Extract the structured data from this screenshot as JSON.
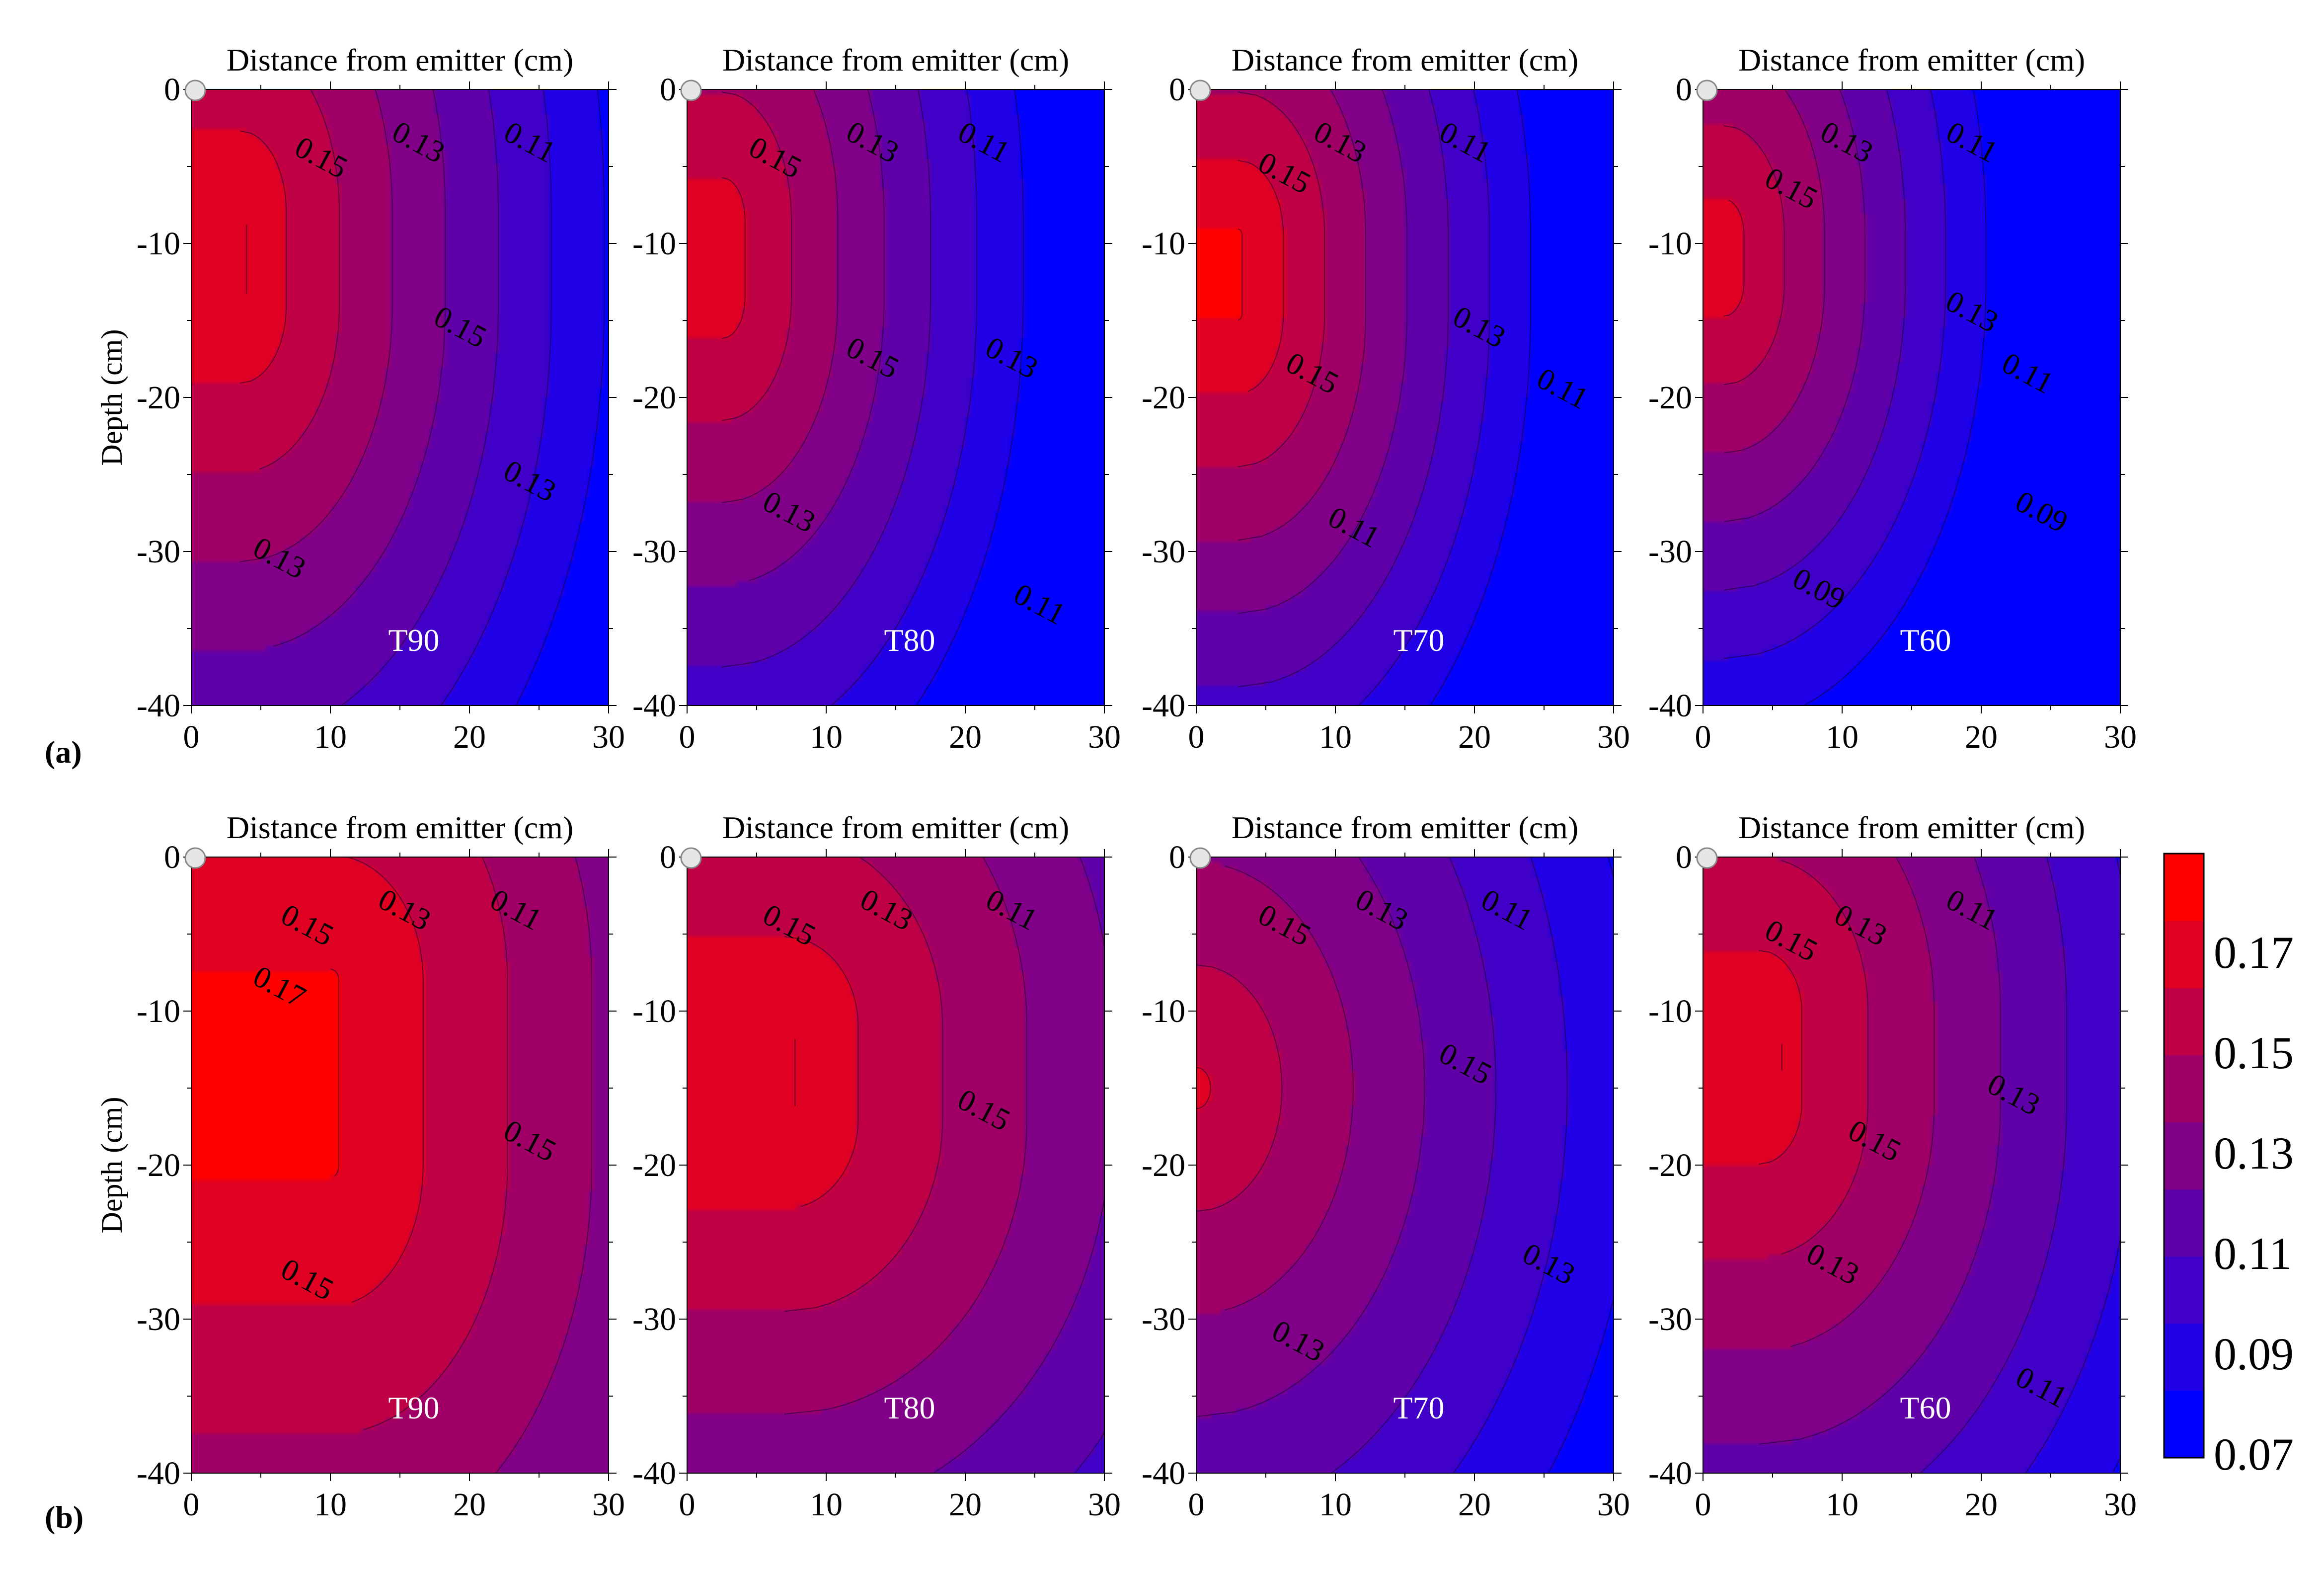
{
  "figure": {
    "row_labels": [
      "(a)",
      "(b)"
    ],
    "colorbar": {
      "labels": [
        "0.17",
        "0.15",
        "0.13",
        "0.11",
        "0.09",
        "0.07"
      ],
      "range": [
        0.07,
        0.19
      ],
      "colors": [
        "#0000ff",
        "#2000e6",
        "#4000c8",
        "#6000a8",
        "#800088",
        "#a00066",
        "#c00044",
        "#e00022",
        "#ff0000"
      ]
    }
  },
  "chart_data": [
    {
      "type": "contour",
      "row": "a",
      "label": "T90",
      "xlabel": "Distance from emitter (cm)",
      "ylabel": "Depth (cm)",
      "xlim": [
        0,
        30
      ],
      "ylim": [
        -40,
        0
      ],
      "xticks": [
        "0",
        "10",
        "20",
        "30"
      ],
      "yticks": [
        "0",
        "-10",
        "-20",
        "-30",
        "-40"
      ],
      "surface": {
        "core": [
          0,
          -11
        ],
        "a": 3.5,
        "b": 3,
        "peak": 0.175,
        "gx": 0.0035,
        "gu": 0.0022,
        "gd": 0.0023
      },
      "contour_labels": [
        {
          "text": "0.15",
          "x": 9,
          "y": -5
        },
        {
          "text": "0.13",
          "x": 16,
          "y": -4
        },
        {
          "text": "0.11",
          "x": 24,
          "y": -4
        },
        {
          "text": "0.15",
          "x": 19,
          "y": -16
        },
        {
          "text": "0.13",
          "x": 24,
          "y": -26
        },
        {
          "text": "0.13",
          "x": 6,
          "y": -31
        }
      ]
    },
    {
      "type": "contour",
      "row": "a",
      "label": "T80",
      "xlabel": "Distance from emitter (cm)",
      "ylabel": "Depth (cm)",
      "xlim": [
        0,
        30
      ],
      "ylim": [
        -40,
        0
      ],
      "xticks": [
        "0",
        "10",
        "20",
        "30"
      ],
      "yticks": [
        "0",
        "-10",
        "-20",
        "-30",
        "-40"
      ],
      "surface": {
        "core": [
          0,
          -11
        ],
        "a": 2.5,
        "b": 2.5,
        "peak": 0.17,
        "gx": 0.004,
        "gu": 0.0024,
        "gd": 0.0025
      },
      "contour_labels": [
        {
          "text": "0.15",
          "x": 6,
          "y": -5
        },
        {
          "text": "0.13",
          "x": 13,
          "y": -4
        },
        {
          "text": "0.11",
          "x": 21,
          "y": -4
        },
        {
          "text": "0.15",
          "x": 13,
          "y": -18
        },
        {
          "text": "0.13",
          "x": 23,
          "y": -18
        },
        {
          "text": "0.13",
          "x": 7,
          "y": -28
        },
        {
          "text": "0.11",
          "x": 25,
          "y": -34
        }
      ]
    },
    {
      "type": "contour",
      "row": "a",
      "label": "T70",
      "xlabel": "Distance from emitter (cm)",
      "ylabel": "Depth (cm)",
      "xlim": [
        0,
        30
      ],
      "ylim": [
        -40,
        0
      ],
      "xticks": [
        "0",
        "10",
        "20",
        "30"
      ],
      "yticks": [
        "0",
        "-10",
        "-20",
        "-30",
        "-40"
      ],
      "surface": {
        "core": [
          0,
          -12
        ],
        "a": 3,
        "b": 2.5,
        "peak": 0.178,
        "gx": 0.0045,
        "gu": 0.003,
        "gd": 0.0028
      },
      "contour_labels": [
        {
          "text": "0.15",
          "x": 6,
          "y": -6
        },
        {
          "text": "0.13",
          "x": 10,
          "y": -4
        },
        {
          "text": "0.11",
          "x": 19,
          "y": -4
        },
        {
          "text": "0.15",
          "x": 8,
          "y": -19
        },
        {
          "text": "0.13",
          "x": 20,
          "y": -16
        },
        {
          "text": "0.11",
          "x": 26,
          "y": -20
        },
        {
          "text": "0.11",
          "x": 11,
          "y": -29
        }
      ]
    },
    {
      "type": "contour",
      "row": "a",
      "label": "T60",
      "xlabel": "Distance from emitter (cm)",
      "ylabel": "Depth (cm)",
      "xlim": [
        0,
        30
      ],
      "ylim": [
        -40,
        0
      ],
      "xticks": [
        "0",
        "10",
        "20",
        "30"
      ],
      "yticks": [
        "0",
        "-10",
        "-20",
        "-30",
        "-40"
      ],
      "surface": {
        "core": [
          0,
          -11
        ],
        "a": 1.5,
        "b": 1.5,
        "peak": 0.17,
        "gx": 0.0046,
        "gu": 0.0028,
        "gd": 0.003
      },
      "contour_labels": [
        {
          "text": "0.15",
          "x": 6,
          "y": -7
        },
        {
          "text": "0.13",
          "x": 10,
          "y": -4
        },
        {
          "text": "0.11",
          "x": 19,
          "y": -4
        },
        {
          "text": "0.13",
          "x": 19,
          "y": -15
        },
        {
          "text": "0.11",
          "x": 23,
          "y": -19
        },
        {
          "text": "0.09",
          "x": 24,
          "y": -28
        },
        {
          "text": "0.09",
          "x": 8,
          "y": -33
        }
      ]
    },
    {
      "type": "contour",
      "row": "b",
      "label": "T90",
      "xlabel": "Distance from emitter (cm)",
      "ylabel": "Depth (cm)",
      "xlim": [
        0,
        30
      ],
      "ylim": [
        -40,
        0
      ],
      "xticks": [
        "0",
        "10",
        "20",
        "30"
      ],
      "yticks": [
        "0",
        "-10",
        "-20",
        "-30",
        "-40"
      ],
      "surface": {
        "core": [
          0,
          -14
        ],
        "a": 10,
        "b": 6,
        "peak": 0.178,
        "gx": 0.0022,
        "gu": 0.0018,
        "gd": 0.0016
      },
      "contour_labels": [
        {
          "text": "0.15",
          "x": 8,
          "y": -5
        },
        {
          "text": "0.13",
          "x": 15,
          "y": -4
        },
        {
          "text": "0.11",
          "x": 23,
          "y": -4
        },
        {
          "text": "0.17",
          "x": 6,
          "y": -9
        },
        {
          "text": "0.15",
          "x": 24,
          "y": -19
        },
        {
          "text": "0.15",
          "x": 8,
          "y": -28
        }
      ]
    },
    {
      "type": "contour",
      "row": "b",
      "label": "T80",
      "xlabel": "Distance from emitter (cm)",
      "ylabel": "Depth (cm)",
      "xlim": [
        0,
        30
      ],
      "ylim": [
        -40,
        0
      ],
      "xticks": [
        "0",
        "10",
        "20",
        "30"
      ],
      "yticks": [
        "0",
        "-10",
        "-20",
        "-30",
        "-40"
      ],
      "surface": {
        "core": [
          0,
          -14
        ],
        "a": 7,
        "b": 3,
        "peak": 0.175,
        "gx": 0.0022,
        "gu": 0.002,
        "gd": 0.002
      },
      "contour_labels": [
        {
          "text": "0.15",
          "x": 7,
          "y": -5
        },
        {
          "text": "0.13",
          "x": 14,
          "y": -4
        },
        {
          "text": "0.11",
          "x": 23,
          "y": -4
        },
        {
          "text": "0.15",
          "x": 21,
          "y": -17
        }
      ]
    },
    {
      "type": "contour",
      "row": "b",
      "label": "T70",
      "xlabel": "Distance from emitter (cm)",
      "ylabel": "Depth (cm)",
      "xlim": [
        0,
        30
      ],
      "ylim": [
        -40,
        0
      ],
      "xticks": [
        "0",
        "10",
        "20",
        "30"
      ],
      "yticks": [
        "0",
        "-10",
        "-20",
        "-30",
        "-40"
      ],
      "surface": {
        "core": [
          0,
          -15
        ],
        "a": 0,
        "b": 0,
        "peak": 0.166,
        "gx": 0.0026,
        "gu": 0.002,
        "gd": 0.002
      },
      "contour_labels": [
        {
          "text": "0.15",
          "x": 6,
          "y": -5
        },
        {
          "text": "0.13",
          "x": 13,
          "y": -4
        },
        {
          "text": "0.11",
          "x": 22,
          "y": -4
        },
        {
          "text": "0.15",
          "x": 19,
          "y": -14
        },
        {
          "text": "0.13",
          "x": 25,
          "y": -27
        },
        {
          "text": "0.13",
          "x": 7,
          "y": -32
        }
      ]
    },
    {
      "type": "contour",
      "row": "b",
      "label": "T60",
      "xlabel": "Distance from emitter (cm)",
      "ylabel": "Depth (cm)",
      "xlim": [
        0,
        30
      ],
      "ylim": [
        -40,
        0
      ],
      "xticks": [
        "0",
        "10",
        "20",
        "30"
      ],
      "yticks": [
        "0",
        "-10",
        "-20",
        "-30",
        "-40"
      ],
      "surface": {
        "core": [
          0,
          -13
        ],
        "a": 4,
        "b": 3,
        "peak": 0.172,
        "gx": 0.0028,
        "gu": 0.0022,
        "gd": 0.0022
      },
      "contour_labels": [
        {
          "text": "0.15",
          "x": 6,
          "y": -6
        },
        {
          "text": "0.13",
          "x": 11,
          "y": -5
        },
        {
          "text": "0.11",
          "x": 19,
          "y": -4
        },
        {
          "text": "0.13",
          "x": 22,
          "y": -16
        },
        {
          "text": "0.15",
          "x": 12,
          "y": -19
        },
        {
          "text": "0.13",
          "x": 9,
          "y": -27
        },
        {
          "text": "0.11",
          "x": 24,
          "y": -35
        }
      ]
    }
  ]
}
